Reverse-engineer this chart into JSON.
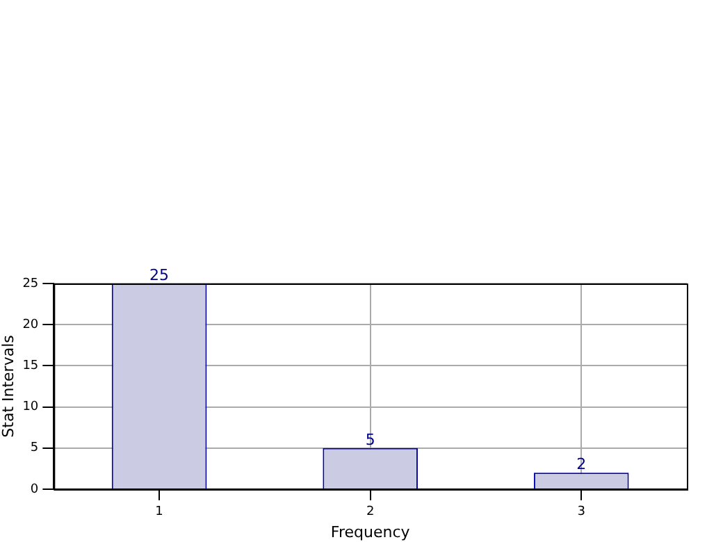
{
  "chart_data": {
    "type": "bar",
    "xlabel": "Frequency",
    "ylabel": "Stat Intervals",
    "categories": [
      "1",
      "2",
      "3"
    ],
    "values": [
      25,
      5,
      2
    ],
    "color": "#cbcbe3",
    "ylim": [
      0,
      25
    ],
    "yticks": [
      0,
      5,
      10,
      15,
      20,
      25
    ],
    "grid": true,
    "data_labels": true
  }
}
